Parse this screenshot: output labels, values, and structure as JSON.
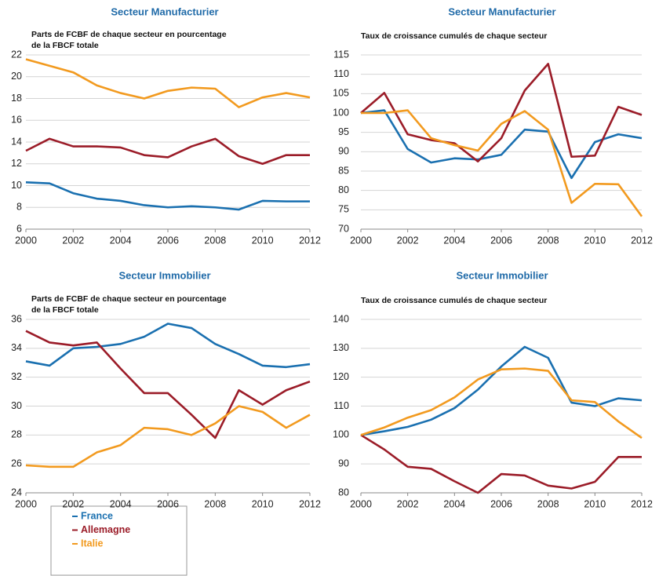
{
  "chart_data": [
    {
      "type": "line",
      "title": "Secteur Manufacturier",
      "subtitle": [
        "Parts de FCBF de chaque secteur en pourcentage",
        "de la FBCF totale"
      ],
      "x": [
        2000,
        2001,
        2002,
        2003,
        2004,
        2005,
        2006,
        2007,
        2008,
        2009,
        2010,
        2011,
        2012
      ],
      "xlim": [
        2000,
        2012
      ],
      "xticks": [
        2000,
        2002,
        2004,
        2006,
        2008,
        2010,
        2012
      ],
      "ylim": [
        6,
        22
      ],
      "yticks": [
        6,
        8,
        10,
        12,
        14,
        16,
        18,
        20,
        22
      ],
      "grid": true,
      "series": [
        {
          "name": "France",
          "color": "#1a70b0",
          "values": [
            10.3,
            10.2,
            9.3,
            8.8,
            8.6,
            8.2,
            8.0,
            8.1,
            8.0,
            7.8,
            8.6,
            8.55,
            8.55
          ]
        },
        {
          "name": "Allemagne",
          "color": "#9b1c28",
          "values": [
            13.2,
            14.3,
            13.6,
            13.6,
            13.5,
            12.8,
            12.6,
            13.6,
            14.3,
            12.7,
            12.0,
            12.8,
            12.8
          ]
        },
        {
          "name": "Italie",
          "color": "#f29a1f",
          "values": [
            21.6,
            21.0,
            20.4,
            19.2,
            18.5,
            18.0,
            18.7,
            19.0,
            18.9,
            17.2,
            18.1,
            18.5,
            18.1
          ]
        }
      ]
    },
    {
      "type": "line",
      "title": "Secteur Manufacturier",
      "subtitle": [
        "Taux de croissance cumulés de chaque secteur"
      ],
      "x": [
        2000,
        2001,
        2002,
        2003,
        2004,
        2005,
        2006,
        2007,
        2008,
        2009,
        2010,
        2011,
        2012
      ],
      "xlim": [
        2000,
        2012
      ],
      "xticks": [
        2000,
        2002,
        2004,
        2006,
        2008,
        2010,
        2012
      ],
      "ylim": [
        70,
        115
      ],
      "yticks": [
        70,
        75,
        80,
        85,
        90,
        95,
        100,
        105,
        110,
        115
      ],
      "grid": true,
      "series": [
        {
          "name": "France",
          "color": "#1a70b0",
          "values": [
            100,
            100.7,
            90.7,
            87.2,
            88.3,
            88.0,
            89.2,
            95.7,
            95.2,
            83.2,
            92.5,
            94.5,
            93.5
          ]
        },
        {
          "name": "Allemagne",
          "color": "#9b1c28",
          "values": [
            100,
            105.2,
            94.5,
            93,
            92.2,
            87.5,
            93.5,
            105.8,
            112.7,
            88.7,
            89,
            101.6,
            99.5
          ]
        },
        {
          "name": "Italie",
          "color": "#f29a1f",
          "values": [
            100,
            100,
            100.7,
            93.5,
            91.7,
            90.3,
            97.2,
            100.5,
            95.7,
            76.8,
            81.7,
            81.6,
            73.3
          ]
        }
      ]
    },
    {
      "type": "line",
      "title": "Secteur Immobilier",
      "subtitle": [
        "Parts de FCBF de chaque secteur en pourcentage",
        "de la FBCF totale"
      ],
      "x": [
        2000,
        2001,
        2002,
        2003,
        2004,
        2005,
        2006,
        2007,
        2008,
        2009,
        2010,
        2011,
        2012
      ],
      "xlim": [
        2000,
        2012
      ],
      "xticks": [
        2000,
        2002,
        2004,
        2006,
        2008,
        2010,
        2012
      ],
      "ylim": [
        24,
        36
      ],
      "yticks": [
        24,
        26,
        28,
        30,
        32,
        34,
        36
      ],
      "grid": true,
      "series": [
        {
          "name": "France",
          "color": "#1a70b0",
          "values": [
            33.1,
            32.8,
            34.0,
            34.1,
            34.3,
            34.8,
            35.7,
            35.4,
            34.3,
            33.6,
            32.8,
            32.7,
            32.9
          ]
        },
        {
          "name": "Allemagne",
          "color": "#9b1c28",
          "values": [
            35.2,
            34.4,
            34.2,
            34.4,
            32.6,
            30.9,
            30.9,
            29.4,
            27.8,
            31.1,
            30.1,
            31.1,
            31.7
          ]
        },
        {
          "name": "Italie",
          "color": "#f29a1f",
          "values": [
            25.9,
            25.8,
            25.8,
            26.8,
            27.3,
            28.5,
            28.4,
            28.0,
            28.8,
            30.0,
            29.6,
            28.5,
            29.4
          ]
        }
      ]
    },
    {
      "type": "line",
      "title": "Secteur Immobilier",
      "subtitle": [
        "Taux de croissance cumulés de chaque secteur"
      ],
      "x": [
        2000,
        2001,
        2002,
        2003,
        2004,
        2005,
        2006,
        2007,
        2008,
        2009,
        2010,
        2011,
        2012
      ],
      "xlim": [
        2000,
        2012
      ],
      "xticks": [
        2000,
        2002,
        2004,
        2006,
        2008,
        2010,
        2012
      ],
      "ylim": [
        80,
        140
      ],
      "yticks": [
        80,
        90,
        100,
        110,
        120,
        130,
        140
      ],
      "grid": true,
      "series": [
        {
          "name": "France",
          "color": "#1a70b0",
          "values": [
            100,
            101.3,
            102.8,
            105.3,
            109.3,
            115.7,
            123.7,
            130.5,
            126.7,
            111.2,
            110,
            112.7,
            112
          ]
        },
        {
          "name": "Allemagne",
          "color": "#9b1c28",
          "values": [
            100,
            95,
            89,
            88.3,
            84,
            80,
            86.5,
            86,
            82.5,
            81.5,
            83.8,
            92.4,
            92.4
          ]
        },
        {
          "name": "Italie",
          "color": "#f29a1f",
          "values": [
            100,
            102.6,
            106,
            108.6,
            113,
            119.2,
            122.7,
            123,
            122.2,
            112,
            111.4,
            104.7,
            99
          ]
        }
      ]
    }
  ]
}
